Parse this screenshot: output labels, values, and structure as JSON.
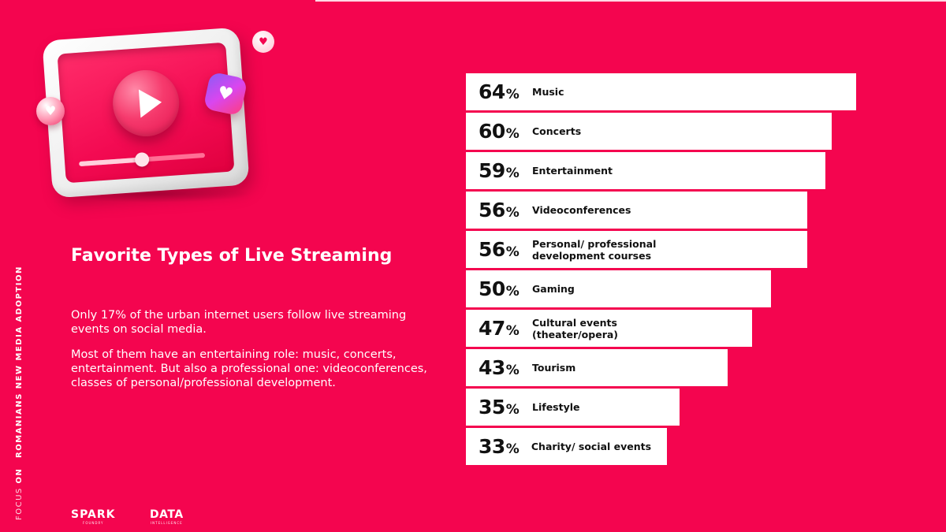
{
  "side_label": {
    "focus": "FOCUS",
    "on": "ON",
    "topic": "ROMANIANS NEW MEDIA ADOPTION"
  },
  "heading": {
    "title": "Favorite Types of Live Streaming"
  },
  "body": {
    "paragraph_1": "Only 17% of the urban internet users follow live streaming events on social media.",
    "paragraph_2": "Most of them have an entertaining role: music, concerts, entertainment. But also a professional one: videoconferences, classes of personal/professional development."
  },
  "logos": {
    "spark": "SPARK",
    "spark_sub": "FOUNDRY",
    "data": "DATA",
    "data_sub": "INTELLIGENCE"
  },
  "illustration": {
    "icons": [
      "tv-frame-icon",
      "play-icon",
      "heart-icon",
      "heart-chat-icon",
      "heart-small-icon"
    ],
    "progress": 0.5
  },
  "colors": {
    "background": "#F4054F",
    "bar": "#FFFFFF",
    "bar_text": "#111111"
  },
  "chart_data": {
    "type": "bar",
    "orientation": "horizontal",
    "unit": "%",
    "xlim": [
      0,
      100
    ],
    "categories": [
      "Music",
      "Concerts",
      "Entertainment",
      "Videoconferences",
      "Personal/ professional development courses",
      "Gaming",
      "Cultural events (theater/opera)",
      "Tourism",
      "Lifestyle",
      "Charity/ social events"
    ],
    "values": [
      64,
      60,
      59,
      56,
      56,
      50,
      47,
      43,
      35,
      33
    ],
    "grid": false,
    "legend": "none"
  }
}
